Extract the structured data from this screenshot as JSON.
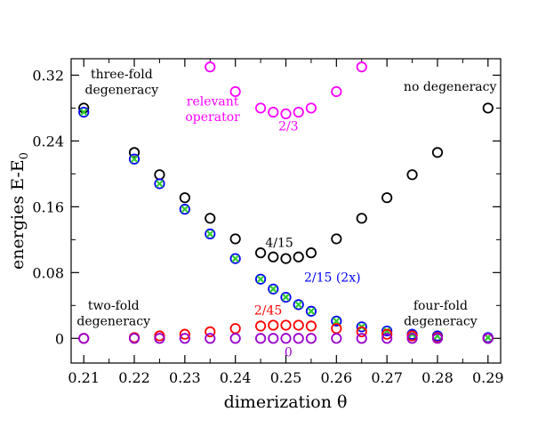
{
  "chart_data": {
    "type": "scatter",
    "title": "",
    "xlabel": "dimerization  θ",
    "ylabel_main": "energies  E-E",
    "ylabel_subscript": "0",
    "xlim": [
      0.2075,
      0.2925
    ],
    "ylim": [
      -0.03,
      0.34
    ],
    "xticks": [
      0.21,
      0.22,
      0.23,
      0.24,
      0.25,
      0.26,
      0.27,
      0.28,
      0.29
    ],
    "xtick_labels": [
      "0.21",
      "0.22",
      "0.23",
      "0.24",
      "0.25",
      "0.26",
      "0.27",
      "0.28",
      "0.29"
    ],
    "yticks": [
      0,
      0.08,
      0.16,
      0.24,
      0.32
    ],
    "ytick_labels": [
      "0",
      "0.08",
      "0.16",
      "0.24",
      "0.32"
    ],
    "grid": false,
    "series": [
      {
        "marker": "open-circle",
        "color": "#000000",
        "x": [
          0.21,
          0.22,
          0.225,
          0.23,
          0.235,
          0.24,
          0.245,
          0.2475,
          0.25,
          0.2525,
          0.255,
          0.26,
          0.265,
          0.27,
          0.275,
          0.28,
          0.29
        ],
        "y": [
          0.28,
          0.226,
          0.199,
          0.171,
          0.146,
          0.121,
          0.104,
          0.099,
          0.097,
          0.099,
          0.104,
          0.121,
          0.146,
          0.171,
          0.199,
          0.226,
          0.28
        ]
      },
      {
        "marker": "open-circle",
        "color": "#ff00ff",
        "x": [
          0.235,
          0.24,
          0.245,
          0.2475,
          0.25,
          0.2525,
          0.255,
          0.26,
          0.265
        ],
        "y": [
          0.33,
          0.3,
          0.28,
          0.275,
          0.273,
          0.275,
          0.28,
          0.3,
          0.33
        ]
      },
      {
        "marker": "open-circle",
        "color": "#0000ff",
        "x": [
          0.21,
          0.22,
          0.225,
          0.23,
          0.235,
          0.24,
          0.245,
          0.2475,
          0.25,
          0.2525,
          0.255,
          0.26,
          0.265,
          0.27,
          0.275,
          0.28,
          0.29
        ],
        "y": [
          0.275,
          0.218,
          0.188,
          0.157,
          0.127,
          0.097,
          0.072,
          0.06,
          0.05,
          0.041,
          0.033,
          0.021,
          0.014,
          0.009,
          0.005,
          0.003,
          0.001
        ]
      },
      {
        "marker": "x-cross",
        "color": "#33cc33",
        "x": [
          0.21,
          0.22,
          0.225,
          0.23,
          0.235,
          0.24,
          0.245,
          0.2475,
          0.25,
          0.2525,
          0.255,
          0.26,
          0.265,
          0.27,
          0.275,
          0.28,
          0.29
        ],
        "y": [
          0.275,
          0.218,
          0.188,
          0.157,
          0.127,
          0.097,
          0.072,
          0.06,
          0.05,
          0.041,
          0.033,
          0.021,
          0.014,
          0.009,
          0.005,
          0.003,
          0.001
        ]
      },
      {
        "marker": "open-circle",
        "color": "#ff0000",
        "x": [
          0.21,
          0.22,
          0.225,
          0.23,
          0.235,
          0.24,
          0.245,
          0.2475,
          0.25,
          0.2525,
          0.255,
          0.26,
          0.265,
          0.27,
          0.275,
          0.28,
          0.29
        ],
        "y": [
          0.0,
          0.001,
          0.003,
          0.005,
          0.008,
          0.012,
          0.015,
          0.016,
          0.016,
          0.016,
          0.015,
          0.012,
          0.008,
          0.005,
          0.003,
          0.001,
          0.0
        ]
      },
      {
        "marker": "open-circle",
        "color": "#9900cc",
        "x": [
          0.21,
          0.22,
          0.225,
          0.23,
          0.235,
          0.24,
          0.245,
          0.2475,
          0.25,
          0.2525,
          0.255,
          0.26,
          0.265,
          0.27,
          0.275,
          0.28,
          0.29
        ],
        "y": [
          0,
          0,
          0,
          0,
          0,
          0,
          0,
          0,
          0,
          0,
          0,
          0,
          0,
          0,
          0,
          0,
          0
        ]
      }
    ],
    "annotations": [
      {
        "text": "three-fold",
        "x": 0.2175,
        "y": 0.316,
        "color": "#000000",
        "anchor": "middle"
      },
      {
        "text": "degeneracy",
        "x": 0.2175,
        "y": 0.297,
        "color": "#000000",
        "anchor": "middle"
      },
      {
        "text": "relevant",
        "x": 0.2355,
        "y": 0.283,
        "color": "#ff00ff",
        "anchor": "middle"
      },
      {
        "text": "operator",
        "x": 0.2355,
        "y": 0.264,
        "color": "#ff00ff",
        "anchor": "middle"
      },
      {
        "text": "2/3",
        "x": 0.2505,
        "y": 0.253,
        "color": "#ff00ff",
        "anchor": "middle"
      },
      {
        "text": "no degeneracy",
        "x": 0.2825,
        "y": 0.301,
        "color": "#000000",
        "anchor": "middle"
      },
      {
        "text": "4/15",
        "x": 0.2487,
        "y": 0.111,
        "color": "#000000",
        "anchor": "middle"
      },
      {
        "text": "2/15 (2x)",
        "x": 0.2592,
        "y": 0.069,
        "color": "#0000ff",
        "anchor": "middle"
      },
      {
        "text": "2/45",
        "x": 0.2465,
        "y": 0.029,
        "color": "#ff0000",
        "anchor": "middle"
      },
      {
        "text": "two-fold",
        "x": 0.2159,
        "y": 0.035,
        "color": "#000000",
        "anchor": "middle"
      },
      {
        "text": "degeneracy",
        "x": 0.2159,
        "y": 0.016,
        "color": "#000000",
        "anchor": "middle"
      },
      {
        "text": "four-fold",
        "x": 0.2806,
        "y": 0.035,
        "color": "#000000",
        "anchor": "middle"
      },
      {
        "text": "degeneracy",
        "x": 0.2806,
        "y": 0.016,
        "color": "#000000",
        "anchor": "middle"
      },
      {
        "text": "0",
        "x": 0.2505,
        "y": -0.022,
        "color": "#9900cc",
        "anchor": "middle"
      }
    ]
  }
}
